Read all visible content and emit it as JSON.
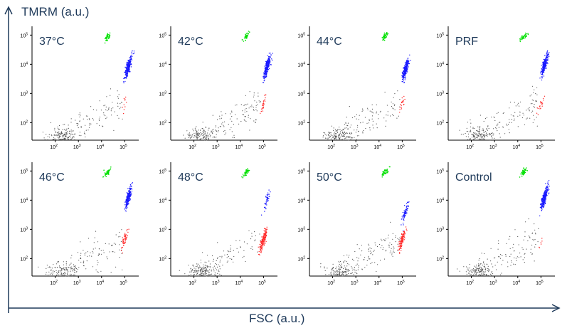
{
  "figure": {
    "y_axis_label": "TMRM (a.u.)",
    "x_axis_label": "FSC (a.u.)",
    "axis_color": "#1f3a5a"
  },
  "chart_data": {
    "type": "scatter",
    "xlabel": "FSC (a.u.)",
    "ylabel": "TMRM (a.u.)",
    "xscale": "log",
    "yscale": "log",
    "xlim": [
      10,
      400000
    ],
    "ylim": [
      25,
      200000
    ],
    "x_ticks": [
      {
        "label": "10",
        "exp": "2",
        "value": 100
      },
      {
        "label": "10",
        "exp": "3",
        "value": 1000
      },
      {
        "label": "10",
        "exp": "4",
        "value": 10000
      },
      {
        "label": "10",
        "exp": "5",
        "value": 100000
      }
    ],
    "y_ticks": [
      {
        "label": "10",
        "exp": "2",
        "value": 100
      },
      {
        "label": "10",
        "exp": "3",
        "value": 1000
      },
      {
        "label": "10",
        "exp": "4",
        "value": 10000
      },
      {
        "label": "10",
        "exp": "5",
        "value": 100000
      }
    ],
    "colors": {
      "polarized": "#1a1aff",
      "depolarized": "#ff2a2a",
      "beads": "#00e000",
      "debris": "#555555"
    },
    "panels": [
      {
        "label": "37°C",
        "polarized": 1.0,
        "depolarized": 0.05,
        "blue_y": 8000
      },
      {
        "label": "42°C",
        "polarized": 0.95,
        "depolarized": 0.12,
        "blue_y": 8000
      },
      {
        "label": "44°C",
        "polarized": 0.92,
        "depolarized": 0.1,
        "blue_y": 7000
      },
      {
        "label": "PRF",
        "polarized": 0.95,
        "depolarized": 0.1,
        "blue_y": 9000
      },
      {
        "label": "46°C",
        "polarized": 0.8,
        "depolarized": 0.25,
        "blue_y": 12000
      },
      {
        "label": "48°C",
        "polarized": 0.15,
        "depolarized": 0.9,
        "blue_y": 10000
      },
      {
        "label": "50°C",
        "polarized": 0.3,
        "depolarized": 0.6,
        "blue_y": 4000
      },
      {
        "label": "Control",
        "polarized": 1.0,
        "depolarized": 0.03,
        "blue_y": 12000
      }
    ]
  }
}
